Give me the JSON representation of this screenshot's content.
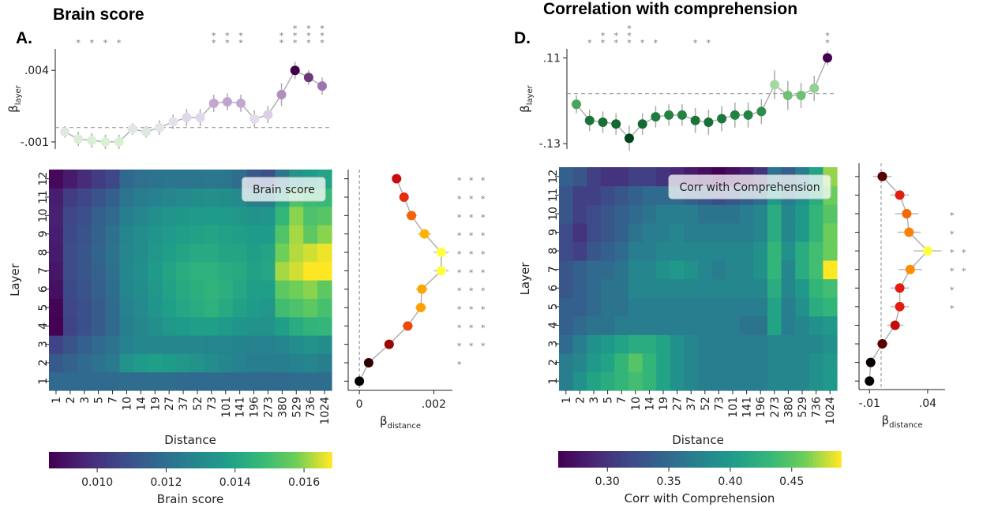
{
  "chart_data": [
    {
      "type": "line",
      "panel_id": "A-top",
      "title": "Brain score",
      "letter": "A.",
      "ylabel": "β",
      "ylabel_sub": "layer",
      "yticks": [
        ".004",
        "-.001"
      ],
      "ytick_values": [
        0.004,
        -0.001
      ],
      "ylim": [
        -0.0015,
        0.0055
      ],
      "reference_line": 0.0,
      "x_categories": [
        "1",
        "2",
        "3",
        "5",
        "7",
        "10",
        "14",
        "19",
        "27",
        "37",
        "52",
        "73",
        "101",
        "141",
        "196",
        "273",
        "380",
        "529",
        "736",
        "1024"
      ],
      "values": [
        -0.0003,
        -0.0008,
        -0.0009,
        -0.001,
        -0.001,
        -0.0001,
        -0.0003,
        0.0,
        0.0004,
        0.0007,
        0.0007,
        0.0017,
        0.0018,
        0.0017,
        0.0006,
        0.0009,
        0.0023,
        0.004,
        0.0035,
        0.0029
      ],
      "errors": [
        0.0004,
        0.0005,
        0.0005,
        0.0005,
        0.0005,
        0.0004,
        0.0004,
        0.0005,
        0.0005,
        0.0006,
        0.0006,
        0.0006,
        0.0006,
        0.0006,
        0.0006,
        0.0006,
        0.0008,
        0.0006,
        0.0005,
        0.0006
      ],
      "stars": [
        "",
        "*",
        "*",
        "*",
        "*",
        "",
        "",
        "",
        "",
        "",
        "",
        "**",
        "**",
        "**",
        "",
        "",
        "**",
        "***",
        "***",
        "***"
      ],
      "colormap": "purple-green"
    },
    {
      "type": "heatmap",
      "panel_id": "A-heat",
      "xlabel": "Distance",
      "ylabel": "Layer",
      "x_categories": [
        "1",
        "2",
        "3",
        "5",
        "7",
        "10",
        "14",
        "19",
        "27",
        "37",
        "52",
        "73",
        "101",
        "141",
        "196",
        "273",
        "380",
        "529",
        "736",
        "1024"
      ],
      "y_categories": [
        "1",
        "2",
        "3",
        "4",
        "5",
        "6",
        "7",
        "8",
        "9",
        "10",
        "11",
        "12"
      ],
      "values": [
        [
          0.0118,
          0.0118,
          0.0118,
          0.0118,
          0.0118,
          0.0119,
          0.0119,
          0.0119,
          0.0119,
          0.0118,
          0.0118,
          0.0118,
          0.0118,
          0.0118,
          0.0118,
          0.0118,
          0.0118,
          0.0119,
          0.0119,
          0.0119
        ],
        [
          0.0112,
          0.0115,
          0.0118,
          0.0121,
          0.0124,
          0.0133,
          0.0136,
          0.0138,
          0.0137,
          0.0135,
          0.0133,
          0.0131,
          0.0129,
          0.0127,
          0.0125,
          0.0125,
          0.0126,
          0.0127,
          0.0128,
          0.0126
        ],
        [
          0.0105,
          0.011,
          0.0114,
          0.0118,
          0.0121,
          0.0127,
          0.0129,
          0.0129,
          0.0129,
          0.0129,
          0.0129,
          0.0128,
          0.0128,
          0.0128,
          0.0127,
          0.0127,
          0.0128,
          0.0131,
          0.0133,
          0.0131
        ],
        [
          0.0086,
          0.0105,
          0.0109,
          0.0113,
          0.0118,
          0.0126,
          0.0129,
          0.0132,
          0.0135,
          0.0137,
          0.0138,
          0.0138,
          0.0136,
          0.0134,
          0.0133,
          0.0133,
          0.0138,
          0.0143,
          0.0146,
          0.0147
        ],
        [
          0.0087,
          0.0106,
          0.0109,
          0.0113,
          0.0118,
          0.0127,
          0.013,
          0.0134,
          0.0138,
          0.0141,
          0.0143,
          0.0145,
          0.0142,
          0.0139,
          0.0136,
          0.0135,
          0.015,
          0.0152,
          0.0155,
          0.0151
        ],
        [
          0.009,
          0.0107,
          0.011,
          0.0114,
          0.0119,
          0.0128,
          0.0131,
          0.0135,
          0.0139,
          0.0142,
          0.0144,
          0.0146,
          0.0144,
          0.0141,
          0.0138,
          0.0138,
          0.0155,
          0.0158,
          0.016,
          0.0155
        ],
        [
          0.0092,
          0.0108,
          0.0111,
          0.0115,
          0.012,
          0.0129,
          0.0132,
          0.0136,
          0.014,
          0.0143,
          0.0145,
          0.0145,
          0.0143,
          0.0142,
          0.0139,
          0.0141,
          0.0162,
          0.0165,
          0.0168,
          0.0168
        ],
        [
          0.0093,
          0.0108,
          0.0111,
          0.0116,
          0.0121,
          0.0129,
          0.0131,
          0.0135,
          0.0138,
          0.014,
          0.0142,
          0.0142,
          0.014,
          0.014,
          0.0138,
          0.014,
          0.0158,
          0.0163,
          0.0165,
          0.0167
        ],
        [
          0.0094,
          0.0107,
          0.011,
          0.0115,
          0.012,
          0.0128,
          0.0131,
          0.0134,
          0.0136,
          0.0138,
          0.0139,
          0.014,
          0.0139,
          0.0138,
          0.0137,
          0.0137,
          0.0153,
          0.0162,
          0.0155,
          0.016
        ],
        [
          0.0095,
          0.0106,
          0.0109,
          0.0114,
          0.0118,
          0.0126,
          0.0129,
          0.0132,
          0.0134,
          0.0135,
          0.0136,
          0.0137,
          0.0136,
          0.0135,
          0.0133,
          0.0134,
          0.0147,
          0.016,
          0.0152,
          0.0154
        ],
        [
          0.0094,
          0.0103,
          0.0106,
          0.011,
          0.0114,
          0.0122,
          0.0125,
          0.0127,
          0.0129,
          0.013,
          0.0131,
          0.0132,
          0.0131,
          0.013,
          0.0126,
          0.0126,
          0.014,
          0.0152,
          0.0149,
          0.0148
        ],
        [
          0.0088,
          0.0093,
          0.0098,
          0.0103,
          0.0106,
          0.0117,
          0.012,
          0.0121,
          0.0122,
          0.0122,
          0.0122,
          0.0123,
          0.0122,
          0.0119,
          0.0112,
          0.0109,
          0.0123,
          0.0133,
          0.0137,
          0.014
        ]
      ],
      "vmin": 0.0086,
      "vmax": 0.0168,
      "legend_text": "Brain score",
      "colormap": "viridis"
    },
    {
      "type": "scatter",
      "panel_id": "A-side",
      "xlabel": "β",
      "xlabel_sub": "distance",
      "xticks": [
        "0",
        ".002"
      ],
      "xtick_values": [
        0.0,
        0.002
      ],
      "xlim": [
        -0.0003,
        0.0025
      ],
      "reference_line": 0.0,
      "layers": [
        "1",
        "2",
        "3",
        "4",
        "5",
        "6",
        "7",
        "8",
        "9",
        "10",
        "11",
        "12"
      ],
      "values": [
        0.0,
        0.00025,
        0.0008,
        0.0013,
        0.00165,
        0.00168,
        0.0022,
        0.0022,
        0.00175,
        0.0014,
        0.0012,
        0.001
      ],
      "errors": [
        5e-05,
        8e-05,
        0.00012,
        0.00015,
        0.00015,
        0.00016,
        0.0002,
        0.0002,
        0.00018,
        0.00015,
        0.00012,
        0.0001
      ],
      "stars": [
        "",
        "*",
        "***",
        "***",
        "***",
        "***",
        "***",
        "***",
        "***",
        "***",
        "***",
        "***"
      ],
      "colormap": "hot"
    },
    {
      "type": "line",
      "panel_id": "D-top",
      "title": "Correlation with comprehension",
      "letter": "D.",
      "ylabel": "β",
      "ylabel_sub": "layer",
      "yticks": [
        ".11",
        "-.13"
      ],
      "ytick_values": [
        0.11,
        -0.13
      ],
      "ylim": [
        -0.145,
        0.135
      ],
      "reference_line": 0.01,
      "x_categories": [
        "1",
        "2",
        "3",
        "5",
        "7",
        "10",
        "14",
        "19",
        "27",
        "37",
        "52",
        "73",
        "101",
        "141",
        "196",
        "273",
        "380",
        "529",
        "736",
        "1024"
      ],
      "values": [
        -0.02,
        -0.065,
        -0.07,
        -0.075,
        -0.115,
        -0.075,
        -0.055,
        -0.05,
        -0.05,
        -0.065,
        -0.07,
        -0.06,
        -0.05,
        -0.05,
        -0.04,
        0.035,
        0.005,
        0.005,
        0.025,
        0.11
      ],
      "errors": [
        0.025,
        0.03,
        0.03,
        0.03,
        0.035,
        0.03,
        0.03,
        0.03,
        0.03,
        0.035,
        0.035,
        0.035,
        0.035,
        0.035,
        0.035,
        0.04,
        0.04,
        0.035,
        0.035,
        0.02
      ],
      "stars": [
        "",
        "*",
        "**",
        "**",
        "***",
        "*",
        "*",
        "",
        "",
        "*",
        "*",
        "",
        "",
        "",
        "",
        "",
        "",
        "",
        "",
        "**"
      ],
      "colormap": "greens-purple"
    },
    {
      "type": "heatmap",
      "panel_id": "D-heat",
      "xlabel": "Distance",
      "ylabel": "Layer",
      "x_categories": [
        "1",
        "2",
        "3",
        "5",
        "7",
        "10",
        "14",
        "19",
        "27",
        "37",
        "52",
        "73",
        "101",
        "141",
        "196",
        "273",
        "380",
        "529",
        "736",
        "1024"
      ],
      "y_categories": [
        "1",
        "2",
        "3",
        "4",
        "5",
        "6",
        "7",
        "8",
        "9",
        "10",
        "11",
        "12"
      ],
      "values": [
        [
          0.37,
          0.39,
          0.41,
          0.42,
          0.43,
          0.44,
          0.43,
          0.41,
          0.39,
          0.38,
          0.37,
          0.37,
          0.37,
          0.37,
          0.37,
          0.38,
          0.38,
          0.38,
          0.39,
          0.4
        ],
        [
          0.37,
          0.38,
          0.4,
          0.41,
          0.43,
          0.45,
          0.43,
          0.41,
          0.39,
          0.38,
          0.37,
          0.37,
          0.37,
          0.37,
          0.37,
          0.38,
          0.38,
          0.38,
          0.39,
          0.4
        ],
        [
          0.35,
          0.37,
          0.39,
          0.4,
          0.41,
          0.42,
          0.42,
          0.41,
          0.39,
          0.38,
          0.37,
          0.37,
          0.37,
          0.37,
          0.37,
          0.38,
          0.38,
          0.38,
          0.38,
          0.39
        ],
        [
          0.34,
          0.35,
          0.36,
          0.36,
          0.37,
          0.37,
          0.37,
          0.37,
          0.37,
          0.37,
          0.37,
          0.37,
          0.37,
          0.36,
          0.36,
          0.41,
          0.37,
          0.38,
          0.39,
          0.4
        ],
        [
          0.34,
          0.34,
          0.35,
          0.36,
          0.36,
          0.37,
          0.37,
          0.37,
          0.37,
          0.37,
          0.37,
          0.37,
          0.37,
          0.37,
          0.37,
          0.41,
          0.37,
          0.39,
          0.42,
          0.43
        ],
        [
          0.33,
          0.34,
          0.35,
          0.36,
          0.36,
          0.38,
          0.38,
          0.38,
          0.38,
          0.38,
          0.38,
          0.38,
          0.38,
          0.38,
          0.38,
          0.42,
          0.38,
          0.4,
          0.43,
          0.44
        ],
        [
          0.33,
          0.34,
          0.35,
          0.35,
          0.36,
          0.38,
          0.38,
          0.39,
          0.4,
          0.39,
          0.38,
          0.37,
          0.38,
          0.38,
          0.39,
          0.43,
          0.38,
          0.42,
          0.44,
          0.49
        ],
        [
          0.32,
          0.31,
          0.33,
          0.34,
          0.35,
          0.37,
          0.37,
          0.38,
          0.38,
          0.38,
          0.38,
          0.38,
          0.38,
          0.38,
          0.39,
          0.43,
          0.39,
          0.42,
          0.44,
          0.46
        ],
        [
          0.32,
          0.3,
          0.32,
          0.33,
          0.34,
          0.36,
          0.37,
          0.37,
          0.38,
          0.37,
          0.37,
          0.37,
          0.37,
          0.37,
          0.38,
          0.42,
          0.38,
          0.4,
          0.43,
          0.46
        ],
        [
          0.33,
          0.31,
          0.32,
          0.33,
          0.34,
          0.35,
          0.36,
          0.37,
          0.37,
          0.37,
          0.36,
          0.36,
          0.36,
          0.37,
          0.38,
          0.42,
          0.38,
          0.4,
          0.43,
          0.45
        ],
        [
          0.33,
          0.31,
          0.31,
          0.32,
          0.33,
          0.34,
          0.35,
          0.35,
          0.35,
          0.34,
          0.33,
          0.32,
          0.33,
          0.34,
          0.35,
          0.4,
          0.37,
          0.39,
          0.42,
          0.46
        ],
        [
          0.34,
          0.33,
          0.31,
          0.3,
          0.3,
          0.31,
          0.31,
          0.3,
          0.29,
          0.28,
          0.27,
          0.26,
          0.27,
          0.28,
          0.3,
          0.36,
          0.34,
          0.37,
          0.41,
          0.47
        ]
      ],
      "vmin": 0.26,
      "vmax": 0.49,
      "legend_text": "Corr with Comprehension",
      "colormap": "viridis"
    },
    {
      "type": "scatter",
      "panel_id": "D-side",
      "xlabel": "β",
      "xlabel_sub": "distance",
      "xticks": [
        "-.01",
        ".04"
      ],
      "xtick_values": [
        -0.01,
        0.04
      ],
      "xlim": [
        -0.019,
        0.055
      ],
      "reference_line": 0.0,
      "layers": [
        "1",
        "2",
        "3",
        "4",
        "5",
        "6",
        "7",
        "8",
        "9",
        "10",
        "11",
        "12"
      ],
      "values": [
        -0.01,
        -0.009,
        0.001,
        0.012,
        0.016,
        0.016,
        0.025,
        0.04,
        0.024,
        0.022,
        0.016,
        0.001
      ],
      "errors": [
        0.004,
        0.004,
        0.005,
        0.007,
        0.008,
        0.008,
        0.01,
        0.012,
        0.01,
        0.01,
        0.008,
        0.008
      ],
      "stars": [
        "",
        "",
        "",
        "",
        "*",
        "*",
        "**",
        "**",
        "*",
        "*",
        "",
        ""
      ],
      "colormap": "hot"
    }
  ],
  "colorbars": [
    {
      "ticks": [
        "0.010",
        "0.012",
        "0.014",
        "0.016"
      ],
      "tick_values": [
        0.01,
        0.012,
        0.014,
        0.016
      ],
      "vmin": 0.0086,
      "vmax": 0.0168,
      "label": "Brain score"
    },
    {
      "ticks": [
        "0.30",
        "0.35",
        "0.40",
        "0.45"
      ],
      "tick_values": [
        0.3,
        0.35,
        0.4,
        0.45
      ],
      "vmin": 0.26,
      "vmax": 0.49,
      "label": "Corr with Comprehension"
    }
  ]
}
